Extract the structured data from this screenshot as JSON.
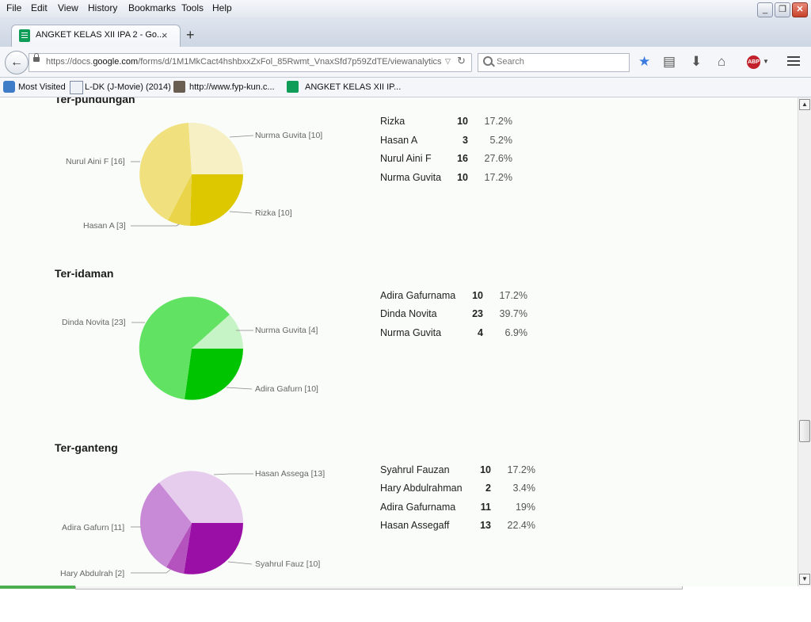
{
  "menu": [
    "File",
    "Edit",
    "View",
    "History",
    "Bookmarks",
    "Tools",
    "Help"
  ],
  "window_buttons": {
    "minimize": "_",
    "restore": "❐",
    "close": "✕"
  },
  "tab": {
    "title": "ANGKET KELAS XII IPA 2 - Go...",
    "close": "×",
    "new_tab": "+"
  },
  "nav": {
    "url_prefix": "https://docs.",
    "url_host": "google.com",
    "url_path": "/forms/d/1M1MkCact4hshbxxZxFol_85Rwmt_VnaxSfd7p59ZdTE/viewanalytics?",
    "search_placeholder": "Search",
    "abp_label": "ABP"
  },
  "bookmarks": [
    "Most Visited",
    "L-DK (J-Movie) (2014)",
    "http://www.fyp-kun.c...",
    "ANGKET KELAS XII IP..."
  ],
  "sections": [
    {
      "title": "Ter-pundungan",
      "pie_labels": [
        "Nurma Guvita [10]",
        "Nurul Aini F [16]",
        "Rizka [10]",
        "Hasan A [3]"
      ],
      "rows": [
        {
          "name": "Rizka",
          "count": "10",
          "pct": "17.2%"
        },
        {
          "name": "Hasan A",
          "count": "3",
          "pct": "5.2%"
        },
        {
          "name": "Nurul Aini F",
          "count": "16",
          "pct": "27.6%"
        },
        {
          "name": "Nurma Guvita",
          "count": "10",
          "pct": "17.2%"
        }
      ],
      "colors": [
        "#ddc800",
        "#ead65a",
        "#f2e283",
        "#f6f0c4"
      ]
    },
    {
      "title": "Ter-idaman",
      "pie_labels": [
        "Dinda Novita [23]",
        "Nurma Guvita [4]",
        "Adira Gafurn [10]"
      ],
      "rows": [
        {
          "name": "Adira Gafurnama",
          "count": "10",
          "pct": "17.2%"
        },
        {
          "name": "Dinda Novita",
          "count": "23",
          "pct": "39.7%"
        },
        {
          "name": "Nurma Guvita",
          "count": "4",
          "pct": "6.9%"
        }
      ],
      "colors": [
        "#00c400",
        "#66e266",
        "#c6f4c6"
      ]
    },
    {
      "title": "Ter-ganteng",
      "pie_labels": [
        "Hasan Assega [13]",
        "Adira Gafurn [11]",
        "Hary Abdulrah [2]",
        "Syahrul Fauz [10]"
      ],
      "rows": [
        {
          "name": "Syahrul Fauzan",
          "count": "10",
          "pct": "17.2%"
        },
        {
          "name": "Hary Abdulrahman",
          "count": "2",
          "pct": "3.4%"
        },
        {
          "name": "Adira Gafurnama",
          "count": "11",
          "pct": "19%"
        },
        {
          "name": "Hasan Assegaff",
          "count": "13",
          "pct": "22.4%"
        }
      ],
      "colors": [
        "#9a10a6",
        "#b452be",
        "#c88ad6",
        "#e6cced"
      ]
    }
  ]
}
